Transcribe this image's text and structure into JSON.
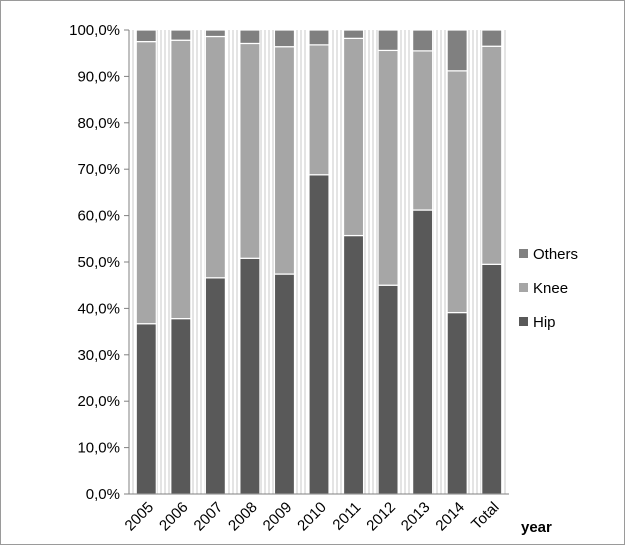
{
  "chart_data": {
    "type": "bar",
    "stacked": true,
    "categories": [
      "2005",
      "2006",
      "2007",
      "2008",
      "2009",
      "2010",
      "2011",
      "2012",
      "2013",
      "2014",
      "Total"
    ],
    "series": [
      {
        "name": "Hip",
        "color": "#595959",
        "values": [
          36.7,
          37.8,
          46.6,
          50.8,
          47.4,
          68.8,
          55.7,
          45.0,
          61.2,
          39.1,
          49.5
        ]
      },
      {
        "name": "Knee",
        "color": "#a6a6a6",
        "values": [
          60.8,
          60.0,
          52.0,
          46.3,
          49.0,
          28.0,
          42.5,
          50.6,
          34.3,
          52.1,
          47.0
        ]
      },
      {
        "name": "Others",
        "color": "#808080",
        "values": [
          2.5,
          2.2,
          1.4,
          2.9,
          3.6,
          3.2,
          1.8,
          4.4,
          4.5,
          8.8,
          3.5
        ]
      }
    ],
    "ylim": [
      0,
      100
    ],
    "yticks": [
      "0,0%",
      "10,0%",
      "20,0%",
      "30,0%",
      "40,0%",
      "50,0%",
      "60,0%",
      "70,0%",
      "80,0%",
      "90,0%",
      "100,0%"
    ],
    "xlabel": "year",
    "ylabel": "",
    "title": "",
    "legend": {
      "position": "right",
      "order": [
        "Others",
        "Knee",
        "Hip"
      ]
    },
    "grid": {
      "vertical_minor": true,
      "horizontal": false
    }
  }
}
